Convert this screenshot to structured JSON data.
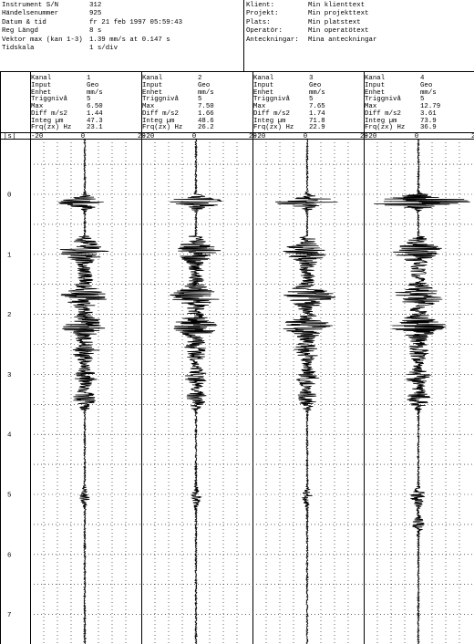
{
  "header": {
    "left": [
      {
        "label": "Instrument S/N",
        "value": "312"
      },
      {
        "label": "Händelsenummer",
        "value": "925"
      },
      {
        "label": "Datum & tid",
        "value": "fr 21 feb 1997 05:59:43"
      },
      {
        "label": "Reg Längd",
        "value": "8 s"
      },
      {
        "label": "Vektor max (kan 1-3)",
        "value": "1.39 mm/s at 0.147 s"
      },
      {
        "label": "Tidskala",
        "value": "1 s/div"
      }
    ],
    "right": [
      {
        "label": "Klient:",
        "value": "Min klienttext"
      },
      {
        "label": "Projekt:",
        "value": "Min projekttext"
      },
      {
        "label": "Plats:",
        "value": "Min platstext"
      },
      {
        "label": "Operatör:",
        "value": "Min operatötext"
      },
      {
        "label": "Anteckningar:",
        "value": "Mina anteckningar"
      }
    ]
  },
  "channel_info_labels": [
    "Kanal",
    "Input",
    "Enhet",
    "Triggnivå",
    "Max",
    "Diff m/s2",
    "Integ µm",
    "Frq(zx) Hz"
  ],
  "channels": [
    {
      "values": [
        "1",
        "Geo",
        "mm/s",
        "5",
        "6.50",
        "1.44",
        "47.3",
        "23.1"
      ]
    },
    {
      "values": [
        "2",
        "Geo",
        "mm/s",
        "5",
        "7.50",
        "1.66",
        "48.6",
        "26.2"
      ]
    },
    {
      "values": [
        "3",
        "Geo",
        "mm/s",
        "5",
        "7.65",
        "1.74",
        "71.8",
        "22.9"
      ]
    },
    {
      "values": [
        "4",
        "Geo",
        "mm/s",
        "5",
        "12.79",
        "3.61",
        "73.9",
        "36.9"
      ]
    }
  ],
  "axis": {
    "unit_label": "[s]"
  },
  "colors": {
    "ink": "#000000",
    "background": "#ffffff"
  },
  "chart_data": {
    "type": "line",
    "title": "",
    "xlabel": "",
    "ylabel": "[s]",
    "orientation": "vertical time axis, one waveform strip per channel",
    "ylim": [
      0,
      7.5
    ],
    "time_ticks": [
      0,
      1,
      2,
      3,
      4,
      5,
      6,
      7
    ],
    "amplitude_ticks": [
      -20,
      0,
      20
    ],
    "amplitude_range": [
      -20,
      20
    ],
    "grid": true,
    "series": [
      {
        "channel": "1",
        "max_abs": 6.5,
        "events": [
          {
            "t": 0.13,
            "a": 6.5
          },
          {
            "t": 0.95,
            "a": 4.2
          },
          {
            "t": 1.7,
            "a": 4.0
          },
          {
            "t": 2.2,
            "a": 4.4
          },
          {
            "t": 2.65,
            "a": 2.0
          },
          {
            "t": 3.05,
            "a": 2.2
          },
          {
            "t": 3.4,
            "a": 2.0
          },
          {
            "t": 5.05,
            "a": 1.1
          }
        ]
      },
      {
        "channel": "2",
        "max_abs": 7.5,
        "events": [
          {
            "t": 0.13,
            "a": 7.5
          },
          {
            "t": 0.95,
            "a": 4.0
          },
          {
            "t": 1.7,
            "a": 4.5
          },
          {
            "t": 2.2,
            "a": 4.2
          },
          {
            "t": 2.65,
            "a": 1.7
          },
          {
            "t": 3.05,
            "a": 2.1
          },
          {
            "t": 3.4,
            "a": 1.8
          },
          {
            "t": 5.05,
            "a": 1.2
          }
        ]
      },
      {
        "channel": "3",
        "max_abs": 7.65,
        "events": [
          {
            "t": 0.13,
            "a": 7.65
          },
          {
            "t": 0.95,
            "a": 4.1
          },
          {
            "t": 1.7,
            "a": 4.8
          },
          {
            "t": 2.2,
            "a": 4.5
          },
          {
            "t": 2.65,
            "a": 1.8
          },
          {
            "t": 3.05,
            "a": 2.0
          },
          {
            "t": 3.4,
            "a": 1.9
          },
          {
            "t": 5.05,
            "a": 1.1
          }
        ]
      },
      {
        "channel": "4",
        "max_abs": 12.79,
        "events": [
          {
            "t": 0.12,
            "a": 12.79
          },
          {
            "t": 0.95,
            "a": 4.4
          },
          {
            "t": 1.7,
            "a": 5.0
          },
          {
            "t": 2.2,
            "a": 4.9
          },
          {
            "t": 2.65,
            "a": 1.8
          },
          {
            "t": 3.05,
            "a": 2.2
          },
          {
            "t": 3.4,
            "a": 2.0
          },
          {
            "t": 5.05,
            "a": 1.9
          },
          {
            "t": 5.5,
            "a": 1.3
          }
        ]
      }
    ]
  }
}
